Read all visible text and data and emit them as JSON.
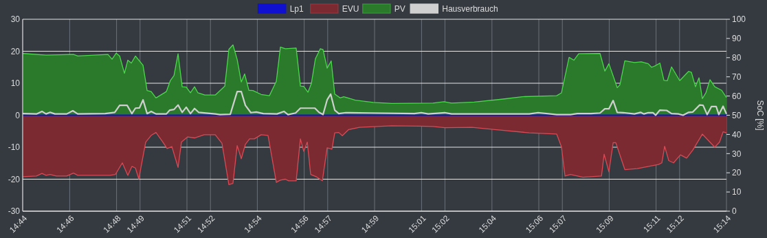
{
  "chart_data": {
    "type": "area",
    "y2label": "SoC [%]",
    "legend": "top",
    "grid": true,
    "xlim": [
      14.7333,
      15.2333
    ],
    "ylim": [
      -30,
      30
    ],
    "yticks": [
      -30,
      -20,
      -10,
      0,
      10,
      20,
      30
    ],
    "y2lim": [
      0,
      100
    ],
    "y2ticks": [
      0,
      10,
      20,
      30,
      40,
      50,
      60,
      70,
      80,
      90,
      100
    ],
    "xticks": [
      {
        "value": 14.7333,
        "label": "14:44"
      },
      {
        "value": 14.7667,
        "label": "14:46"
      },
      {
        "value": 14.8,
        "label": "14:48"
      },
      {
        "value": 14.8167,
        "label": "14:49"
      },
      {
        "value": 14.85,
        "label": "14:51"
      },
      {
        "value": 14.8667,
        "label": "14:52"
      },
      {
        "value": 14.9,
        "label": "14:54"
      },
      {
        "value": 14.9333,
        "label": "14:56"
      },
      {
        "value": 14.95,
        "label": "14:57"
      },
      {
        "value": 14.9833,
        "label": "14:59"
      },
      {
        "value": 15.0167,
        "label": "15:01"
      },
      {
        "value": 15.0333,
        "label": "15:02"
      },
      {
        "value": 15.0667,
        "label": "15:04"
      },
      {
        "value": 15.1,
        "label": "15:06"
      },
      {
        "value": 15.1167,
        "label": "15:07"
      },
      {
        "value": 15.15,
        "label": "15:09"
      },
      {
        "value": 15.1833,
        "label": "15:11"
      },
      {
        "value": 15.2,
        "label": "15:12"
      },
      {
        "value": 15.2333,
        "label": "15:14"
      }
    ],
    "series": [
      {
        "name": "Lp1",
        "type": "line",
        "color": "#1010d0",
        "x": [
          14.7333,
          15.2333
        ],
        "values": [
          0,
          0
        ]
      },
      {
        "name": "EVU",
        "color": "#7a2a30",
        "x": [
          14.7333,
          14.7431,
          14.747,
          14.7499,
          14.7528,
          14.7572,
          14.7646,
          14.7694,
          14.7724,
          14.7953,
          14.7992,
          14.8041,
          14.808,
          14.8109,
          14.8134,
          14.8158,
          14.8207,
          14.8246,
          14.828,
          14.8329,
          14.8359,
          14.8393,
          14.8437,
          14.8461,
          14.8505,
          14.8554,
          14.8622,
          14.8701,
          14.8749,
          14.8798,
          14.8827,
          14.8857,
          14.8886,
          14.8915,
          14.8945,
          14.8979,
          14.9027,
          14.9076,
          14.9135,
          14.9164,
          14.9199,
          14.9223,
          14.9276,
          14.9306,
          14.933,
          14.9355,
          14.9379,
          14.9418,
          14.9462,
          14.9496,
          14.953,
          14.955,
          14.9579,
          14.9604,
          14.9648,
          14.9726,
          14.9955,
          15.015,
          15.0248,
          15.0331,
          15.0526,
          15.0688,
          15.0932,
          15.1127,
          15.1161,
          15.1186,
          15.1225,
          15.1313,
          15.1445,
          15.1464,
          15.1498,
          15.1528,
          15.1547,
          15.1611,
          15.1699,
          15.185,
          15.1874,
          15.1894,
          15.1923,
          15.1957,
          15.2006,
          15.205,
          15.2094,
          15.2162,
          15.225,
          15.2284,
          15.2309,
          15.2333
        ],
        "values": [
          -19.2,
          -19.0,
          -18.2,
          -18.8,
          -18.5,
          -19.0,
          -19.0,
          -18.1,
          -18.8,
          -18.8,
          -18.5,
          -14.9,
          -18.8,
          -16.0,
          -16.5,
          -19.9,
          -8.4,
          -6.3,
          -5.4,
          -8.4,
          -10.4,
          -9.8,
          -16.3,
          -8.4,
          -6.8,
          -7.1,
          -6.1,
          -6.1,
          -8.8,
          -21.7,
          -21.3,
          -9.5,
          -13.6,
          -9.1,
          -7.4,
          -7.4,
          -6.1,
          -6.3,
          -21.0,
          -20.3,
          -20.0,
          -20.5,
          -20.5,
          -7.4,
          -11.3,
          -8.4,
          -18.5,
          -19.2,
          -20.5,
          -10.2,
          -10.6,
          -5.5,
          -5.4,
          -6.4,
          -4.5,
          -3.8,
          -3.3,
          -3.4,
          -3.5,
          -3.9,
          -3.8,
          -4.5,
          -5.5,
          -5.9,
          -9.9,
          -19.0,
          -18.5,
          -19.4,
          -19.0,
          -12.2,
          -17.7,
          -8.6,
          -8.6,
          -17.0,
          -16.7,
          -15.4,
          -14.9,
          -9.7,
          -14.2,
          -14.9,
          -12.4,
          -13.4,
          -10.9,
          -5.9,
          -10.0,
          -8.4,
          -5.2,
          -5.5
        ]
      },
      {
        "name": "PV",
        "color": "#2b7a2b",
        "x": [
          14.7333,
          14.7499,
          14.7694,
          14.7724,
          14.7939,
          14.7968,
          14.7997,
          14.8022,
          14.8056,
          14.808,
          14.8105,
          14.8134,
          14.8188,
          14.8217,
          14.8246,
          14.828,
          14.8354,
          14.8383,
          14.8408,
          14.8437,
          14.8466,
          14.8495,
          14.8525,
          14.8554,
          14.8578,
          14.8627,
          14.8701,
          14.8769,
          14.8798,
          14.8827,
          14.8857,
          14.8886,
          14.891,
          14.894,
          14.8969,
          14.8979,
          14.9027,
          14.9086,
          14.9135,
          14.9164,
          14.9199,
          14.9276,
          14.9306,
          14.933,
          14.936,
          14.9384,
          14.9413,
          14.9448,
          14.9467,
          14.9496,
          14.9525,
          14.955,
          14.9589,
          14.9614,
          14.9696,
          14.9823,
          14.9955,
          15.0248,
          15.0326,
          15.038,
          15.0541,
          15.0736,
          15.0883,
          15.1127,
          15.1161,
          15.1215,
          15.1249,
          15.1283,
          15.1435,
          15.1469,
          15.1498,
          15.1557,
          15.1576,
          15.1611,
          15.1679,
          15.1728,
          15.1777,
          15.1801,
          15.1825,
          15.186,
          15.1889,
          15.1913,
          15.1943,
          15.2001,
          15.2064,
          15.2084,
          15.2113,
          15.2138,
          15.2162,
          15.2187,
          15.2216,
          15.225,
          15.2299,
          15.2333
        ],
        "values": [
          19.3,
          18.8,
          19.0,
          18.5,
          19.0,
          17.5,
          19.4,
          18.5,
          13.1,
          17.2,
          16.3,
          18.5,
          15.6,
          7.7,
          7.4,
          5.4,
          7.4,
          10.9,
          12.4,
          19.2,
          8.9,
          8.8,
          7.0,
          8.9,
          7.0,
          6.3,
          6.3,
          9.1,
          20.6,
          22.0,
          17.4,
          10.4,
          12.9,
          7.8,
          7.7,
          7.5,
          6.5,
          6.1,
          10.6,
          21.3,
          20.8,
          21.0,
          9.1,
          9.0,
          7.2,
          9.9,
          17.7,
          20.8,
          20.5,
          14.7,
          17.0,
          6.6,
          5.4,
          5.8,
          4.7,
          4.0,
          3.7,
          3.8,
          4.2,
          3.8,
          4.1,
          5.0,
          5.8,
          6.1,
          7.0,
          18.1,
          17.2,
          19.2,
          19.3,
          13.8,
          16.1,
          8.6,
          9.5,
          17.0,
          16.5,
          16.7,
          16.1,
          15.0,
          15.4,
          16.3,
          10.9,
          10.8,
          15.1,
          10.8,
          13.7,
          13.4,
          8.9,
          11.7,
          5.2,
          7.0,
          11.1,
          8.9,
          7.8,
          5.5
        ]
      },
      {
        "name": "Hausverbrauch",
        "type": "line",
        "color": "#d0d0d0",
        "x": [
          14.7333,
          14.7431,
          14.747,
          14.7499,
          14.7528,
          14.7562,
          14.7646,
          14.7689,
          14.7724,
          14.7919,
          14.7987,
          14.8022,
          14.8075,
          14.8109,
          14.8134,
          14.8163,
          14.8188,
          14.8217,
          14.8246,
          14.828,
          14.8354,
          14.8378,
          14.8408,
          14.8437,
          14.8466,
          14.8495,
          14.8525,
          14.8554,
          14.8583,
          14.8701,
          14.8735,
          14.8808,
          14.8857,
          14.8886,
          14.8915,
          14.8954,
          14.8993,
          14.9042,
          14.914,
          14.9189,
          14.9218,
          14.9272,
          14.9306,
          14.9409,
          14.9438,
          14.9467,
          14.9496,
          14.9521,
          14.955,
          14.9579,
          14.9628,
          14.9794,
          15.0116,
          15.0165,
          15.0214,
          15.0331,
          15.038,
          15.0932,
          15.0995,
          15.1127,
          15.1225,
          15.1273,
          15.1371,
          15.1435,
          15.1469,
          15.1498,
          15.1528,
          15.1557,
          15.1601,
          15.1679,
          15.1723,
          15.1747,
          15.1777,
          15.1811,
          15.183,
          15.186,
          15.1908,
          15.1943,
          15.1991,
          15.2025,
          15.2064,
          15.2094,
          15.2143,
          15.2167,
          15.2196,
          15.2226,
          15.226,
          15.2279,
          15.2309,
          15.2333
        ],
        "values": [
          0.5,
          0.4,
          1.2,
          0.4,
          0.9,
          0.4,
          0.4,
          1.4,
          0.4,
          0.5,
          0.9,
          3.1,
          3.1,
          0.5,
          2.2,
          2.3,
          4.8,
          0.5,
          1.2,
          0.4,
          0.4,
          1.6,
          1.8,
          3.2,
          0.9,
          2.5,
          0.5,
          2.1,
          0.9,
          0.4,
          0.2,
          0.3,
          7.4,
          7.4,
          3.1,
          0.8,
          1.0,
          0.5,
          0.4,
          1.2,
          0.2,
          0.7,
          2.2,
          2.2,
          0.9,
          0.2,
          4.8,
          6.6,
          1.6,
          0.5,
          0.8,
          0.7,
          0.5,
          0.8,
          0.4,
          0.8,
          0.4,
          0.4,
          0.8,
          0.2,
          0.2,
          0.5,
          0.5,
          0.7,
          2.0,
          2.0,
          4.6,
          0.9,
          0.8,
          0.4,
          0.9,
          0.4,
          0.8,
          0.8,
          0.0,
          1.6,
          1.5,
          0.5,
          0.4,
          0.0,
          0.9,
          1.0,
          3.2,
          3.1,
          0.2,
          2.7,
          2.7,
          0.2,
          2.8,
          0.4
        ]
      }
    ]
  }
}
